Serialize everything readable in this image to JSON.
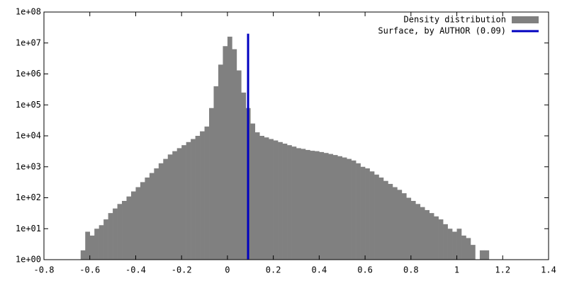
{
  "chart_data": {
    "type": "histogram",
    "name": "Density distribution",
    "color": "#808080",
    "bins": [
      -0.64,
      -0.62,
      -0.6,
      -0.58,
      -0.56,
      -0.54,
      -0.52,
      -0.5,
      -0.48,
      -0.46,
      -0.44,
      -0.42,
      -0.4,
      -0.38,
      -0.36,
      -0.34,
      -0.32,
      -0.3,
      -0.28,
      -0.26,
      -0.24,
      -0.22,
      -0.2,
      -0.18,
      -0.16,
      -0.14,
      -0.12,
      -0.1,
      -0.08,
      -0.06,
      -0.04,
      -0.02,
      0,
      0.02,
      0.04,
      0.06,
      0.08,
      0.1,
      0.12,
      0.14,
      0.16,
      0.18,
      0.2,
      0.22,
      0.24,
      0.26,
      0.28,
      0.3,
      0.32,
      0.34,
      0.36,
      0.38,
      0.4,
      0.42,
      0.44,
      0.46,
      0.48,
      0.5,
      0.52,
      0.54,
      0.56,
      0.58,
      0.6,
      0.62,
      0.64,
      0.66,
      0.68,
      0.7,
      0.72,
      0.74,
      0.76,
      0.78,
      0.8,
      0.82,
      0.84,
      0.86,
      0.88,
      0.9,
      0.92,
      0.94,
      0.96,
      0.98,
      1,
      1.02,
      1.04,
      1.06,
      1.08,
      1.1,
      1.12,
      1.14,
      1.16
    ],
    "counts": [
      2,
      8,
      6,
      10,
      13,
      20,
      32,
      45,
      63,
      79,
      110,
      160,
      220,
      320,
      450,
      630,
      890,
      1300,
      1800,
      2500,
      3200,
      4000,
      5000,
      6300,
      7900,
      10000,
      14000,
      20000,
      79000,
      400000,
      2000000,
      7900000,
      16000000,
      6300000,
      1300000,
      250000,
      79000,
      25000,
      13000,
      10000,
      8900,
      7900,
      7100,
      6300,
      5600,
      5000,
      4500,
      4000,
      3800,
      3500,
      3300,
      3200,
      3000,
      2800,
      2600,
      2400,
      2200,
      2000,
      1800,
      1600,
      1300,
      1000,
      890,
      710,
      560,
      450,
      350,
      280,
      220,
      180,
      140,
      100,
      79,
      63,
      50,
      40,
      32,
      25,
      20,
      14,
      10,
      8,
      10,
      6,
      5,
      3,
      1,
      2,
      2,
      1
    ],
    "overlay": {
      "name": "Surface, by AUTHOR (0.09)",
      "color": "#0000c0",
      "x": 0.09,
      "y": [
        1,
        20000000
      ]
    },
    "log_y": true,
    "xlim": [
      -0.8,
      1.4
    ],
    "xticks": [
      -0.8,
      -0.6,
      -0.4,
      -0.2,
      0,
      0.2,
      0.4,
      0.6,
      0.8,
      1,
      1.2,
      1.4
    ],
    "ylim": [
      1,
      100000000
    ],
    "yticks": [
      {
        "value": 1,
        "label": "1e+00"
      },
      {
        "value": 10,
        "label": "1e+01"
      },
      {
        "value": 100,
        "label": "1e+02"
      },
      {
        "value": 1000,
        "label": "1e+03"
      },
      {
        "value": 10000,
        "label": "1e+04"
      },
      {
        "value": 100000,
        "label": "1e+05"
      },
      {
        "value": 1000000,
        "label": "1e+06"
      },
      {
        "value": 10000000,
        "label": "1e+07"
      },
      {
        "value": 100000000,
        "label": "1e+08"
      }
    ],
    "legend": "top-right"
  }
}
